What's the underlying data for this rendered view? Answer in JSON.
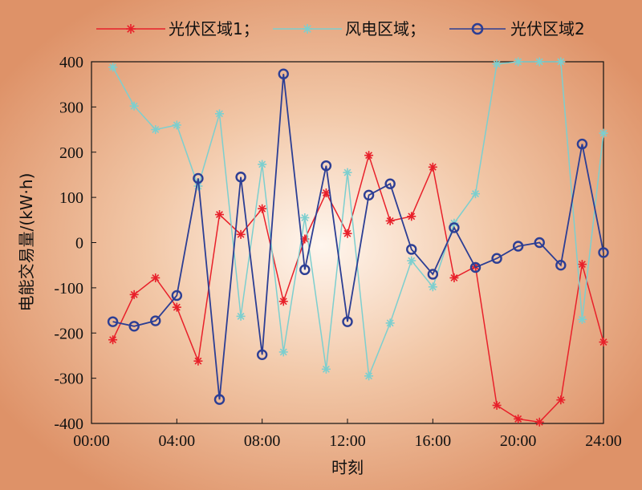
{
  "chart_data": {
    "type": "line",
    "xlabel": "时刻",
    "ylabel": "电能交易量/(kW·h)",
    "xlim": [
      0,
      24
    ],
    "ylim": [
      -400,
      400
    ],
    "x_ticks": [
      "00:00",
      "04:00",
      "08:00",
      "12:00",
      "16:00",
      "20:00",
      "24:00"
    ],
    "y_ticks": [
      400,
      300,
      200,
      100,
      0,
      -100,
      -200,
      -300,
      -400
    ],
    "x": [
      1,
      2,
      3,
      4,
      5,
      6,
      7,
      8,
      9,
      10,
      11,
      12,
      13,
      14,
      15,
      16,
      17,
      18,
      19,
      20,
      21,
      22,
      23,
      24
    ],
    "legend_position": "top",
    "series": [
      {
        "name": "光伏区域1；",
        "color": "#e8202a",
        "marker": "asterisk",
        "values": [
          -215,
          -115,
          -78,
          -143,
          -262,
          62,
          18,
          75,
          -130,
          8,
          110,
          20,
          193,
          48,
          58,
          167,
          -78,
          -53,
          -360,
          -390,
          -397,
          -348,
          -48,
          -220
        ]
      },
      {
        "name": "风电区域；",
        "color": "#7ccfcf",
        "marker": "asterisk",
        "values": [
          388,
          302,
          250,
          260,
          125,
          285,
          -163,
          173,
          -242,
          55,
          -280,
          155,
          -295,
          -178,
          -40,
          -98,
          43,
          108,
          395,
          400,
          400,
          400,
          -170,
          242
        ]
      },
      {
        "name": "光伏区域2",
        "color": "#2c3e94",
        "marker": "circle",
        "values": [
          -175,
          -185,
          -173,
          -117,
          142,
          -347,
          145,
          -248,
          373,
          -60,
          170,
          -175,
          105,
          130,
          -15,
          -70,
          33,
          -55,
          -35,
          -8,
          0,
          -50,
          218,
          -22
        ]
      }
    ]
  }
}
